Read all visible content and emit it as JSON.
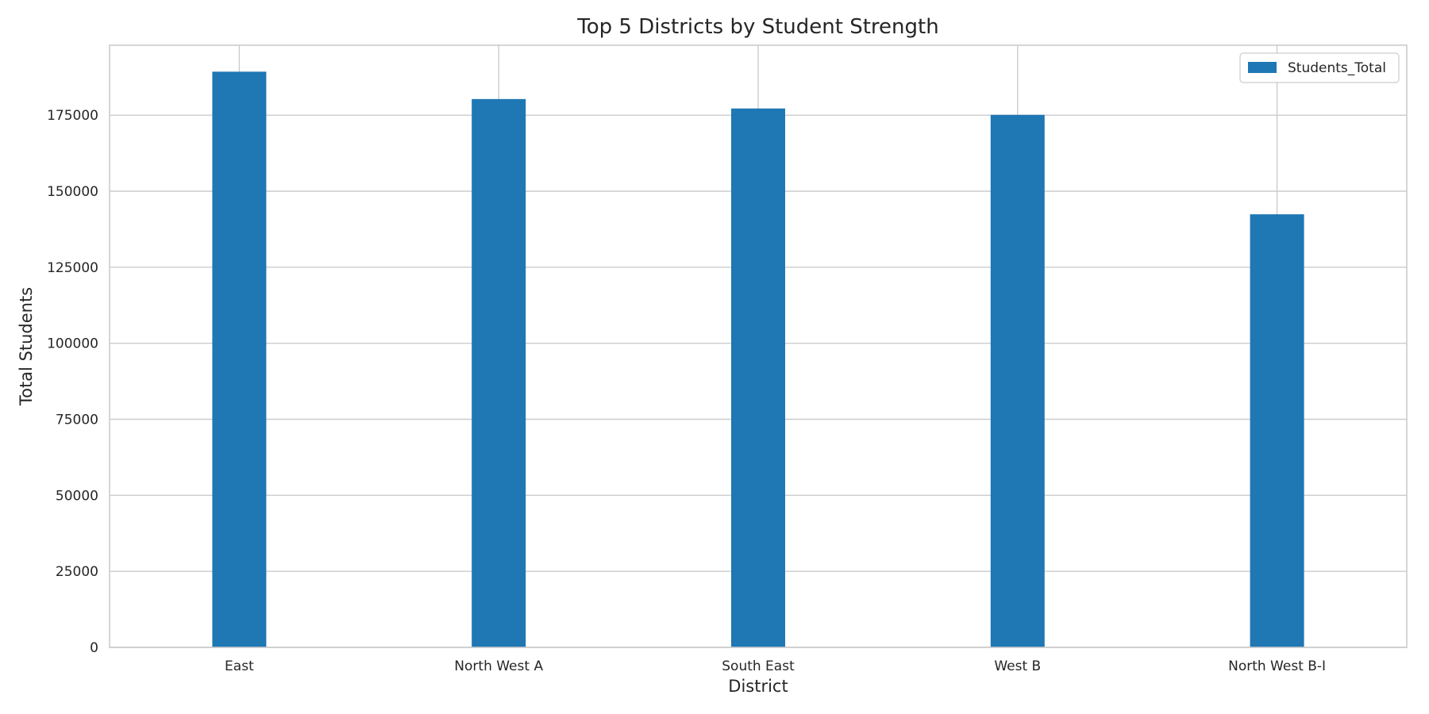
{
  "chart_data": {
    "type": "bar",
    "title": "Top 5 Districts by Student Strength",
    "xlabel": "District",
    "ylabel": "Total Students",
    "categories": [
      "East",
      "North West A",
      "South East",
      "West B",
      "North West B-I"
    ],
    "series": [
      {
        "name": "Students_Total",
        "values": [
          189300,
          180300,
          177200,
          175100,
          142400
        ]
      }
    ],
    "ylim": [
      0,
      198000
    ],
    "yticks": [
      0,
      25000,
      50000,
      75000,
      100000,
      125000,
      150000,
      175000
    ],
    "ytick_labels": [
      "0",
      "25000",
      "50000",
      "75000",
      "100000",
      "125000",
      "150000",
      "175000"
    ],
    "grid": true,
    "legend_position": "top-right",
    "colors": {
      "bar": "#1f77b4",
      "grid": "#cccccc",
      "frame": "#cccccc",
      "text": "#262626"
    }
  }
}
